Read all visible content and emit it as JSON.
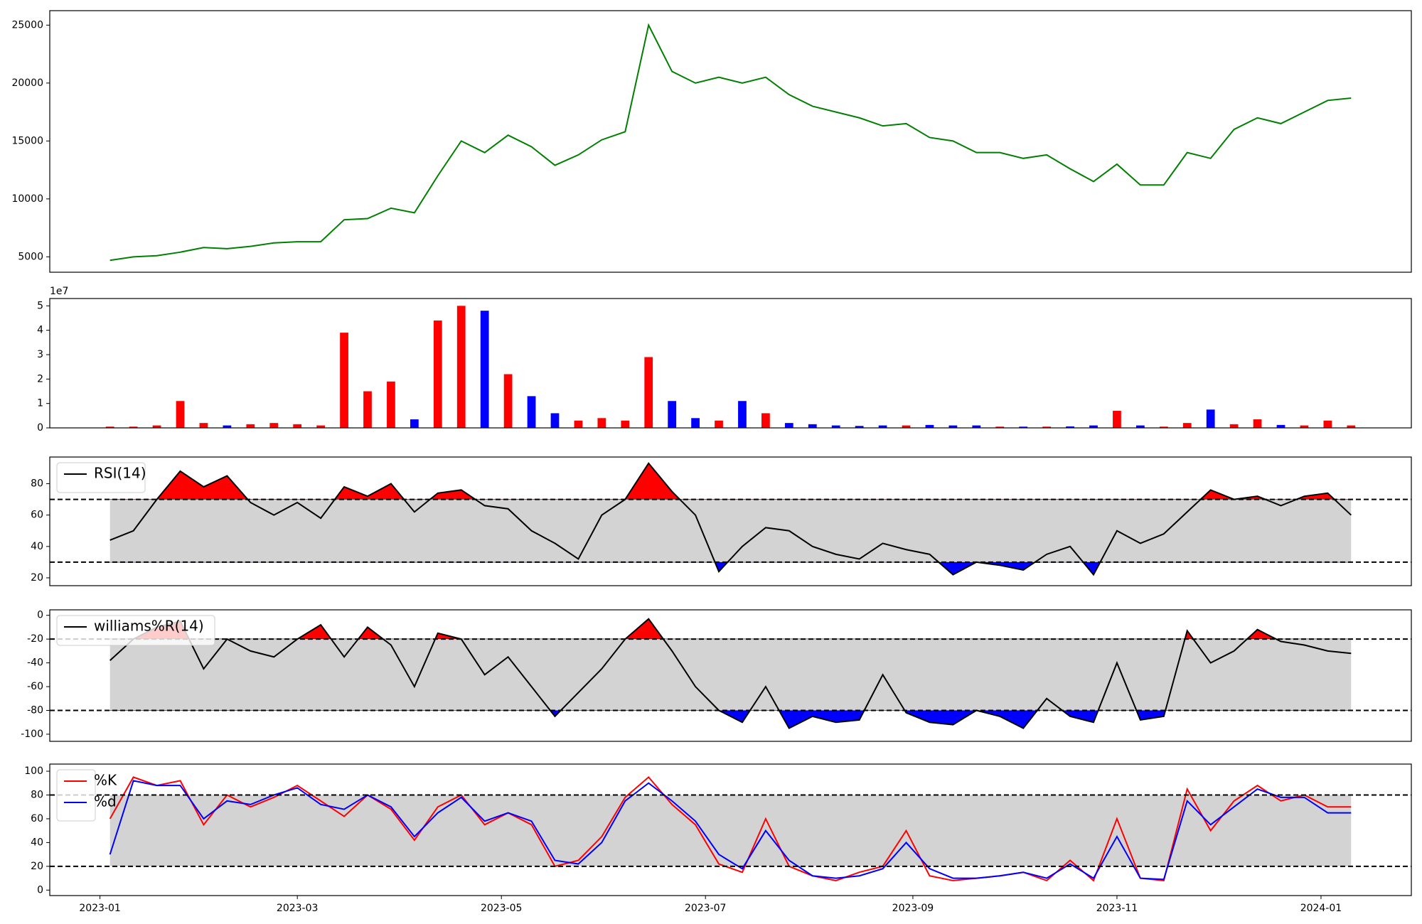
{
  "chart_data": {
    "x": [
      "2023-01-04",
      "2023-01-11",
      "2023-01-18",
      "2023-01-25",
      "2023-02-01",
      "2023-02-08",
      "2023-02-15",
      "2023-02-22",
      "2023-03-01",
      "2023-03-08",
      "2023-03-15",
      "2023-03-22",
      "2023-03-29",
      "2023-04-05",
      "2023-04-12",
      "2023-04-19",
      "2023-04-26",
      "2023-05-03",
      "2023-05-10",
      "2023-05-17",
      "2023-05-24",
      "2023-05-31",
      "2023-06-07",
      "2023-06-14",
      "2023-06-21",
      "2023-06-28",
      "2023-07-05",
      "2023-07-12",
      "2023-07-19",
      "2023-07-26",
      "2023-08-02",
      "2023-08-09",
      "2023-08-16",
      "2023-08-23",
      "2023-08-30",
      "2023-09-06",
      "2023-09-13",
      "2023-09-20",
      "2023-09-27",
      "2023-10-04",
      "2023-10-11",
      "2023-10-18",
      "2023-10-25",
      "2023-11-01",
      "2023-11-08",
      "2023-11-15",
      "2023-11-22",
      "2023-11-29",
      "2023-12-06",
      "2023-12-13",
      "2023-12-20",
      "2023-12-27",
      "2024-01-03",
      "2024-01-10"
    ],
    "xlim": [
      "2022-12-17",
      "2024-01-28"
    ],
    "xticks": [
      {
        "value": "2023-01-01",
        "label": "2023-01"
      },
      {
        "value": "2023-03-01",
        "label": "2023-03"
      },
      {
        "value": "2023-05-01",
        "label": "2023-05"
      },
      {
        "value": "2023-07-01",
        "label": "2023-07"
      },
      {
        "value": "2023-09-01",
        "label": "2023-09"
      },
      {
        "value": "2023-11-01",
        "label": "2023-11"
      },
      {
        "value": "2024-01-01",
        "label": "2024-01"
      }
    ],
    "panels": [
      {
        "type": "line",
        "ylim": [
          3670,
          26250
        ],
        "yticks": [
          5000,
          10000,
          15000,
          20000,
          25000
        ],
        "legend": false,
        "series": [
          {
            "name": "close",
            "color": "#008000",
            "values": [
              4700,
              5000,
              5100,
              5400,
              5800,
              5700,
              5900,
              6200,
              6300,
              6300,
              8200,
              8300,
              9200,
              8800,
              12000,
              15000,
              14000,
              15500,
              14500,
              12900,
              13800,
              15100,
              15800,
              25000,
              21000,
              20000,
              20500,
              20000,
              20500,
              19000,
              18000,
              17500,
              17000,
              16300,
              16500,
              15300,
              15000,
              14000,
              14000,
              13500,
              13800,
              12600,
              11500,
              13000,
              11200,
              11200,
              14000,
              13500,
              16000,
              17000,
              16500,
              17500,
              18500,
              18700
            ]
          }
        ]
      },
      {
        "type": "bar",
        "ylim": [
          0,
          5.3
        ],
        "yticks": [
          0,
          1,
          2,
          3,
          4,
          5
        ],
        "offset_label": "1e7",
        "up_color": "#ff0000",
        "down_color": "#0000ff",
        "values": [
          0.05,
          0.05,
          0.1,
          1.1,
          0.2,
          0.1,
          0.15,
          0.2,
          0.15,
          0.1,
          3.9,
          1.5,
          1.9,
          0.35,
          4.4,
          5.0,
          4.8,
          2.2,
          1.3,
          0.6,
          0.3,
          0.4,
          0.3,
          2.9,
          1.1,
          0.4,
          0.3,
          1.1,
          0.6,
          0.2,
          0.15,
          0.1,
          0.08,
          0.1,
          0.1,
          0.12,
          0.1,
          0.1,
          0.05,
          0.05,
          0.05,
          0.06,
          0.1,
          0.7,
          0.1,
          0.05,
          0.2,
          0.75,
          0.15,
          0.35,
          0.12,
          0.1,
          0.3,
          0.1
        ]
      },
      {
        "type": "line",
        "ylim": [
          15,
          97
        ],
        "yticks": [
          20,
          40,
          60,
          80
        ],
        "legend": true,
        "hlines": [
          70,
          30
        ],
        "band": [
          30,
          70
        ],
        "band_color": "#d3d3d3",
        "above_color": "#ff0000",
        "below_color": "#0000ff",
        "series": [
          {
            "name": "RSI(14)",
            "color": "#000000",
            "values": [
              44,
              50,
              70,
              88,
              78,
              85,
              68,
              60,
              68,
              58,
              78,
              72,
              80,
              62,
              74,
              76,
              66,
              64,
              50,
              42,
              32,
              60,
              70,
              93,
              75,
              60,
              24,
              40,
              52,
              50,
              40,
              35,
              32,
              42,
              38,
              35,
              22,
              30,
              28,
              25,
              35,
              40,
              22,
              50,
              42,
              48,
              62,
              76,
              70,
              72,
              66,
              72,
              74,
              60
            ]
          }
        ]
      },
      {
        "type": "line",
        "ylim": [
          -106,
          4.6
        ],
        "yticks": [
          -100,
          -80,
          -60,
          -40,
          -20,
          0
        ],
        "legend": true,
        "hlines": [
          -20,
          -80
        ],
        "band": [
          -80,
          -20
        ],
        "band_color": "#d3d3d3",
        "above_color": "#ff0000",
        "below_color": "#0000ff",
        "series": [
          {
            "name": "williams%R(14)",
            "color": "#000000",
            "values": [
              -38,
              -20,
              -10,
              -5,
              -45,
              -20,
              -30,
              -35,
              -20,
              -8,
              -35,
              -10,
              -25,
              -60,
              -15,
              -20,
              -50,
              -35,
              -60,
              -85,
              -65,
              -45,
              -20,
              -3,
              -30,
              -60,
              -80,
              -90,
              -60,
              -95,
              -85,
              -90,
              -88,
              -50,
              -82,
              -90,
              -92,
              -80,
              -85,
              -95,
              -70,
              -85,
              -90,
              -40,
              -88,
              -85,
              -13,
              -40,
              -30,
              -12,
              -22,
              -25,
              -30,
              -32
            ]
          }
        ]
      },
      {
        "type": "line",
        "ylim": [
          -4.6,
          106
        ],
        "yticks": [
          0,
          20,
          40,
          60,
          80,
          100
        ],
        "legend": true,
        "hlines": [
          80,
          20
        ],
        "band": [
          20,
          80
        ],
        "band_color": "#d3d3d3",
        "series": [
          {
            "name": "%K",
            "color": "#ff0000",
            "values": [
              60,
              95,
              88,
              92,
              55,
              80,
              70,
              78,
              88,
              75,
              62,
              80,
              68,
              42,
              70,
              80,
              55,
              65,
              55,
              20,
              25,
              45,
              78,
              95,
              72,
              55,
              22,
              15,
              60,
              20,
              12,
              8,
              15,
              20,
              50,
              12,
              8,
              10,
              12,
              15,
              8,
              25,
              8,
              60,
              10,
              8,
              85,
              50,
              75,
              88,
              75,
              80,
              70,
              70
            ]
          },
          {
            "name": "%d",
            "color": "#0000ff",
            "values": [
              30,
              92,
              88,
              88,
              60,
              75,
              72,
              80,
              86,
              72,
              68,
              80,
              70,
              45,
              65,
              78,
              58,
              65,
              58,
              25,
              22,
              40,
              75,
              90,
              75,
              58,
              30,
              18,
              50,
              25,
              12,
              10,
              12,
              18,
              40,
              18,
              10,
              10,
              12,
              15,
              10,
              22,
              10,
              45,
              10,
              9,
              75,
              55,
              70,
              85,
              78,
              78,
              65,
              65
            ]
          }
        ]
      }
    ]
  }
}
